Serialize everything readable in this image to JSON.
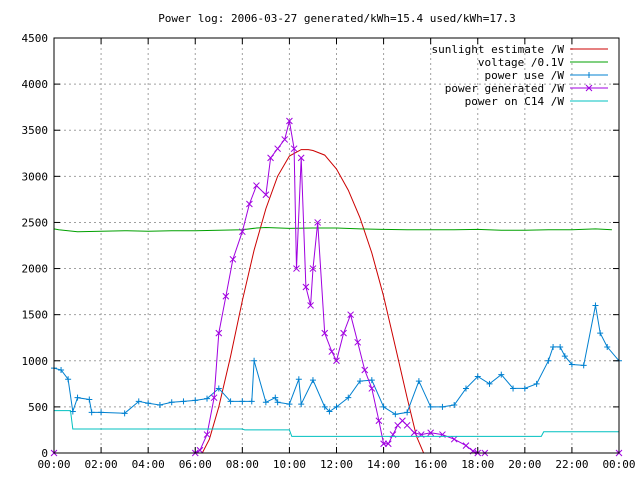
{
  "chart_data": {
    "type": "line",
    "title": "Power log: 2006-03-27 generated/kWh=15.4 used/kWh=17.3",
    "xlabel": "",
    "ylabel": "",
    "xlim": [
      0,
      24
    ],
    "ylim": [
      0,
      4500
    ],
    "grid": true,
    "legend_position": "top-right",
    "x_ticks": [
      "00:00",
      "02:00",
      "04:00",
      "06:00",
      "08:00",
      "10:00",
      "12:00",
      "14:00",
      "16:00",
      "18:00",
      "20:00",
      "22:00",
      "00:00"
    ],
    "y_ticks": [
      "0",
      "500",
      "1000",
      "1500",
      "2000",
      "2500",
      "3000",
      "3500",
      "4000",
      "4500"
    ],
    "series": [
      {
        "name": "sunlight estimate /W",
        "color": "#cc0000",
        "marker": "none",
        "x": [
          0,
          6.3,
          6.6,
          7.0,
          7.5,
          8.0,
          8.5,
          9.0,
          9.5,
          10.0,
          10.5,
          10.8,
          11.0,
          11.5,
          12.0,
          12.5,
          13.0,
          13.5,
          14.0,
          14.5,
          15.0,
          15.4,
          15.7,
          24
        ],
        "y": [
          0,
          0,
          150,
          500,
          1050,
          1650,
          2200,
          2650,
          3000,
          3220,
          3290,
          3290,
          3280,
          3230,
          3080,
          2850,
          2550,
          2170,
          1700,
          1150,
          600,
          180,
          0,
          0
        ]
      },
      {
        "name": "voltage /0.1V",
        "color": "#00a000",
        "marker": "none",
        "x": [
          0,
          0.2,
          1,
          2,
          3,
          4,
          5,
          6,
          7,
          8,
          8.6,
          9,
          10,
          11,
          12,
          13,
          14,
          15,
          16,
          17,
          18,
          19,
          20,
          21,
          22,
          23,
          23.7
        ],
        "y": [
          2430,
          2420,
          2400,
          2405,
          2410,
          2405,
          2410,
          2410,
          2415,
          2420,
          2440,
          2445,
          2435,
          2440,
          2440,
          2430,
          2425,
          2420,
          2420,
          2420,
          2425,
          2415,
          2415,
          2420,
          2420,
          2430,
          2420
        ]
      },
      {
        "name": "power use /W",
        "color": "#0080d0",
        "marker": "plus",
        "x": [
          0,
          0.3,
          0.6,
          0.8,
          1.0,
          1.5,
          1.6,
          2.0,
          3.0,
          3.6,
          4.0,
          4.5,
          5.0,
          5.5,
          6.0,
          6.5,
          7.0,
          7.5,
          8.0,
          8.4,
          8.5,
          9.0,
          9.4,
          9.5,
          10.0,
          10.4,
          10.5,
          11.0,
          11.5,
          11.7,
          12.0,
          12.5,
          13.0,
          13.5,
          14.0,
          14.5,
          15.0,
          15.5,
          16.0,
          16.5,
          17.0,
          17.5,
          18.0,
          18.5,
          19.0,
          19.5,
          20.0,
          20.5,
          21.0,
          21.2,
          21.5,
          21.7,
          22.0,
          22.5,
          23.0,
          23.2,
          23.5,
          24.0
        ],
        "y": [
          920,
          900,
          800,
          450,
          600,
          580,
          440,
          440,
          430,
          560,
          540,
          520,
          550,
          560,
          570,
          590,
          700,
          560,
          560,
          560,
          1000,
          550,
          600,
          550,
          530,
          800,
          530,
          790,
          500,
          450,
          500,
          600,
          780,
          790,
          500,
          420,
          440,
          780,
          500,
          500,
          520,
          700,
          830,
          750,
          850,
          700,
          700,
          750,
          1000,
          1150,
          1150,
          1050,
          960,
          950,
          1600,
          1300,
          1150,
          1000
        ]
      },
      {
        "name": "power generated /W",
        "color": "#a000e0",
        "marker": "cross",
        "x": [
          0,
          6.0,
          6.2,
          6.5,
          6.8,
          7.0,
          7.3,
          7.6,
          8.0,
          8.3,
          8.6,
          9.0,
          9.2,
          9.5,
          9.8,
          10.0,
          10.2,
          10.3,
          10.5,
          10.7,
          10.9,
          11.0,
          11.2,
          11.5,
          11.8,
          12.0,
          12.3,
          12.6,
          12.9,
          13.2,
          13.5,
          13.8,
          14.0,
          14.2,
          14.4,
          14.6,
          14.8,
          15.0,
          15.3,
          15.6,
          16.0,
          16.5,
          17.0,
          17.5,
          17.8,
          18.0,
          18.3,
          24.0
        ],
        "y": [
          0,
          0,
          30,
          200,
          600,
          1300,
          1700,
          2100,
          2400,
          2700,
          2900,
          2800,
          3200,
          3300,
          3400,
          3600,
          3300,
          2000,
          3200,
          1800,
          1600,
          2000,
          2500,
          1300,
          1100,
          1000,
          1300,
          1500,
          1200,
          900,
          700,
          350,
          100,
          100,
          200,
          300,
          350,
          300,
          220,
          200,
          220,
          200,
          150,
          80,
          20,
          0,
          0,
          0
        ]
      },
      {
        "name": "power on C14 /W",
        "color": "#00c0c0",
        "marker": "none",
        "x": [
          0,
          0.7,
          0.8,
          8.0,
          8.1,
          10.0,
          10.1,
          12.0,
          20.7,
          20.8,
          24.0
        ],
        "y": [
          460,
          460,
          260,
          260,
          250,
          250,
          180,
          180,
          180,
          230,
          230
        ]
      }
    ]
  }
}
